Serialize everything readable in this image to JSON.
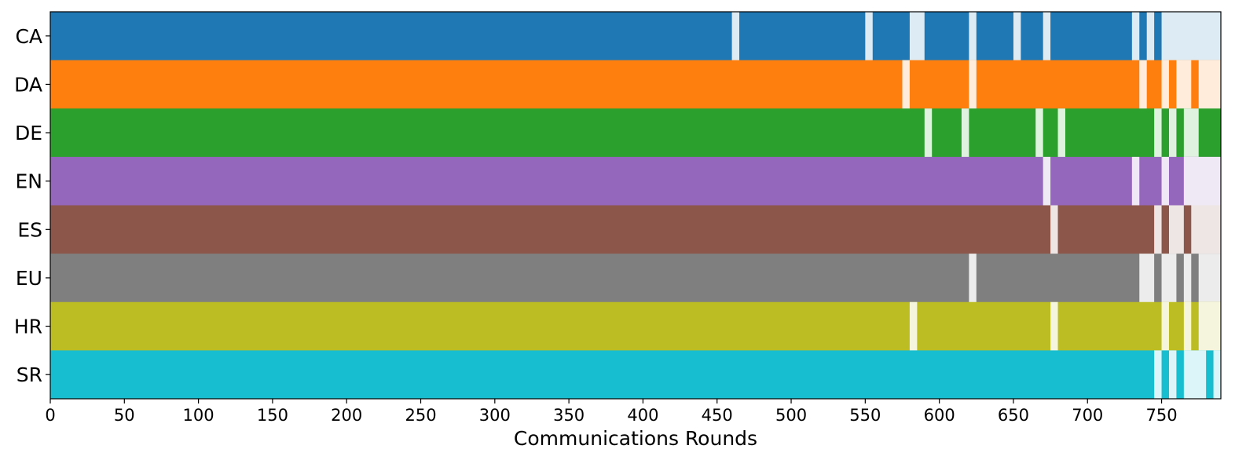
{
  "chart_data": {
    "type": "timeline",
    "xlabel": "Communications Rounds",
    "xlim": [
      0,
      790
    ],
    "x_ticks": [
      0,
      50,
      100,
      150,
      200,
      250,
      300,
      350,
      400,
      450,
      500,
      550,
      600,
      650,
      700,
      750
    ],
    "inactive_opacity": 0.15,
    "rows": [
      {
        "label": "CA",
        "color": "#1f77b4",
        "inactive": [
          [
            460,
            465
          ],
          [
            550,
            555
          ],
          [
            580,
            590
          ],
          [
            620,
            625
          ],
          [
            650,
            655
          ],
          [
            670,
            675
          ],
          [
            730,
            735
          ],
          [
            740,
            745
          ],
          [
            750,
            790
          ]
        ]
      },
      {
        "label": "DA",
        "color": "#ff7f0e",
        "inactive": [
          [
            575,
            580
          ],
          [
            620,
            625
          ],
          [
            735,
            740
          ],
          [
            750,
            755
          ],
          [
            760,
            770
          ],
          [
            775,
            790
          ]
        ]
      },
      {
        "label": "DE",
        "color": "#2ca02c",
        "inactive": [
          [
            590,
            595
          ],
          [
            615,
            620
          ],
          [
            665,
            670
          ],
          [
            680,
            685
          ],
          [
            745,
            750
          ],
          [
            755,
            760
          ],
          [
            765,
            775
          ]
        ]
      },
      {
        "label": "EN",
        "color": "#9467bd",
        "inactive": [
          [
            670,
            675
          ],
          [
            730,
            735
          ],
          [
            750,
            755
          ],
          [
            765,
            790
          ]
        ]
      },
      {
        "label": "ES",
        "color": "#8c564b",
        "inactive": [
          [
            675,
            680
          ],
          [
            745,
            750
          ],
          [
            755,
            765
          ],
          [
            770,
            790
          ]
        ]
      },
      {
        "label": "EU",
        "color": "#7f7f7f",
        "inactive": [
          [
            620,
            625
          ],
          [
            735,
            745
          ],
          [
            750,
            760
          ],
          [
            765,
            770
          ],
          [
            775,
            790
          ]
        ]
      },
      {
        "label": "HR",
        "color": "#bcbd22",
        "inactive": [
          [
            580,
            585
          ],
          [
            675,
            680
          ],
          [
            750,
            755
          ],
          [
            765,
            770
          ],
          [
            775,
            790
          ]
        ]
      },
      {
        "label": "SR",
        "color": "#17becf",
        "inactive": [
          [
            745,
            750
          ],
          [
            755,
            760
          ],
          [
            765,
            780
          ],
          [
            785,
            790
          ]
        ]
      }
    ]
  }
}
